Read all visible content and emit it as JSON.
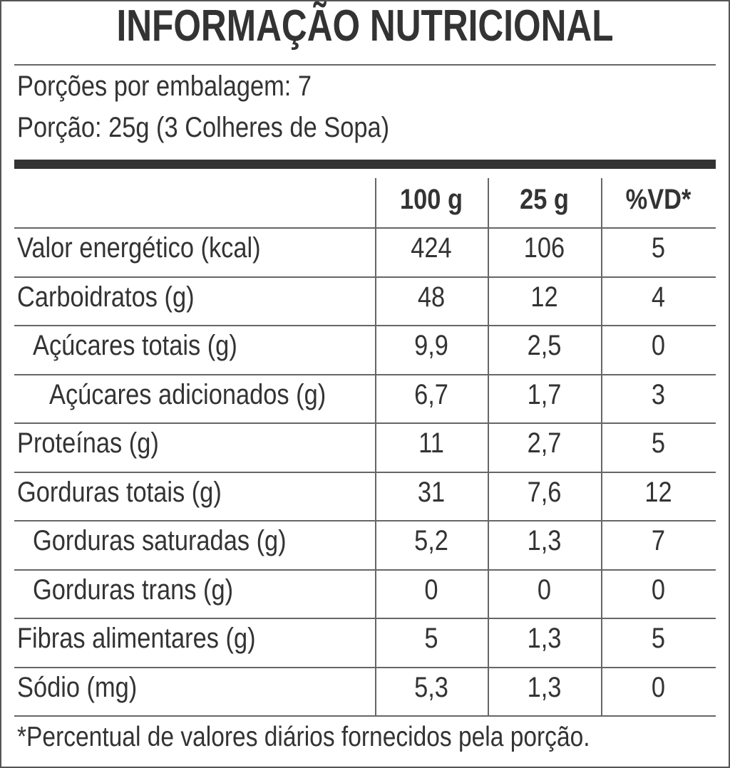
{
  "title": "INFORMAÇÃO NUTRICIONAL",
  "servings": [
    "Porções por embalagem: 7",
    "Porção: 25g (3 Colheres de Sopa)"
  ],
  "table": {
    "columns": [
      "100 g",
      "25 g",
      "%VD*"
    ],
    "rows": [
      [
        "Valor energético (kcal)",
        "424",
        "106",
        "5"
      ],
      [
        "Carboidratos (g)",
        "48",
        "12",
        "4"
      ],
      [
        "Açúcares totais (g)",
        "9,9",
        "2,5",
        "0"
      ],
      [
        "Açúcares adicionados (g)",
        "6,7",
        "1,7",
        "3"
      ],
      [
        "Proteínas (g)",
        "11",
        "2,7",
        "5"
      ],
      [
        "Gorduras totais (g)",
        "31",
        "7,6",
        "12"
      ],
      [
        "Gorduras saturadas (g)",
        "5,2",
        "1,3",
        "7"
      ],
      [
        "Gorduras trans (g)",
        "0",
        "0",
        "0"
      ],
      [
        "Fibras alimentares (g)",
        "5",
        "1,3",
        "5"
      ],
      [
        "Sódio (mg)",
        "5,3",
        "1,3",
        "0"
      ]
    ]
  },
  "footnote": "*Percentual de valores diários fornecidos pela porção."
}
